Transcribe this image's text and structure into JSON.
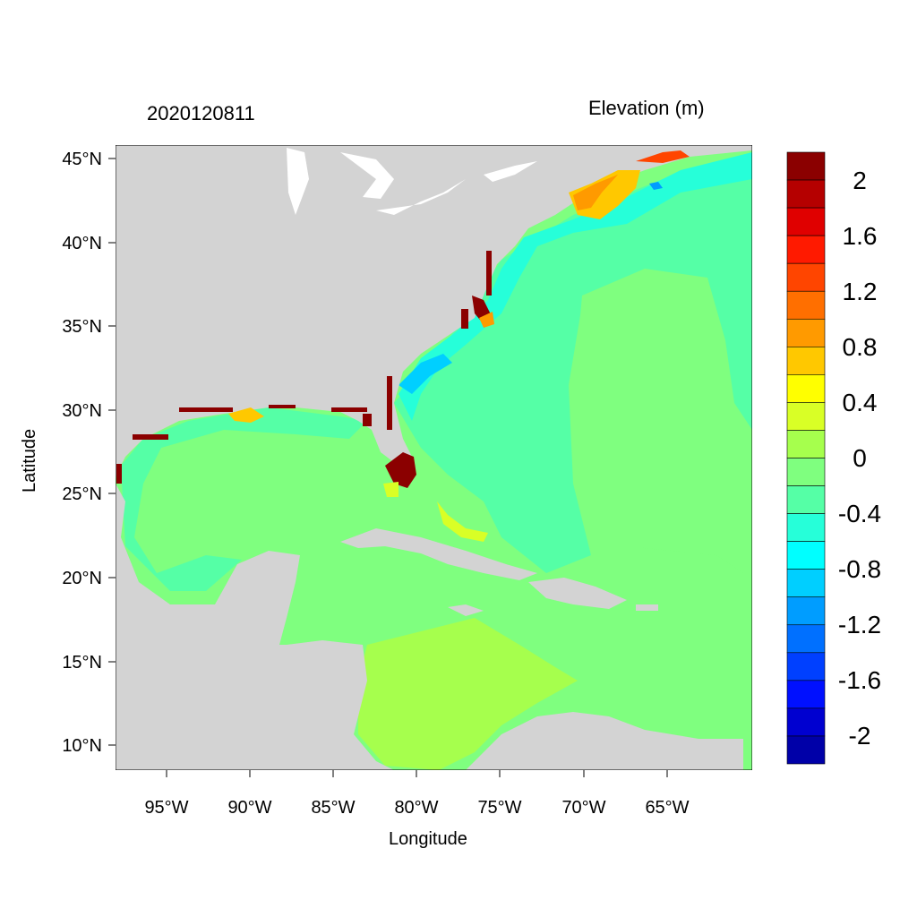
{
  "title": {
    "left": "2020120811",
    "right": "Elevation (m)"
  },
  "axes": {
    "x_label": "Longitude",
    "y_label": "Latitude",
    "x_ticks": [
      "95°W",
      "90°W",
      "85°W",
      "80°W",
      "75°W",
      "70°W",
      "65°W"
    ],
    "y_ticks": [
      "45°N",
      "40°N",
      "35°N",
      "30°N",
      "25°N",
      "20°N",
      "15°N",
      "10°N"
    ]
  },
  "colorbar": {
    "labels": [
      "2",
      "1.6",
      "1.2",
      "0.8",
      "0.4",
      "0",
      "-0.4",
      "-0.8",
      "-1.2",
      "-1.6",
      "-2"
    ],
    "colors": [
      "#8b0000",
      "#b50000",
      "#e00000",
      "#ff1a00",
      "#ff4500",
      "#ff6f00",
      "#ff9a00",
      "#ffc800",
      "#ffff00",
      "#d9ff26",
      "#a6ff4d",
      "#7fff7f",
      "#55ffa6",
      "#26ffd9",
      "#00ffff",
      "#00cfff",
      "#009dff",
      "#0070ff",
      "#0040ff",
      "#0010ff",
      "#0000d0",
      "#0000a8"
    ]
  },
  "colors": {
    "land": "#d3d3d3",
    "ocean_base": "#7fff7f",
    "lakes": "#ffffff"
  }
}
